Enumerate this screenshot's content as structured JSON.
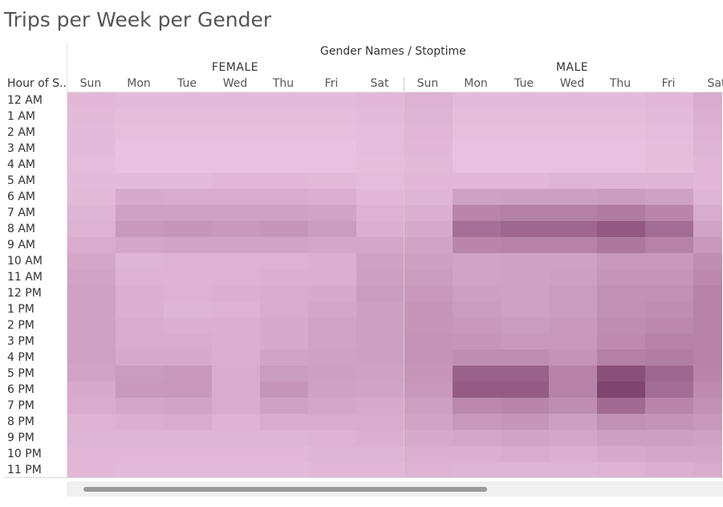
{
  "title": "Trips per Week per Gender",
  "chart_data": {
    "type": "heatmap",
    "column_super_header": "Gender Names / Stoptime",
    "row_header": "Hour of S..",
    "groups": [
      "FEMALE",
      "MALE"
    ],
    "days": [
      "Sun",
      "Mon",
      "Tue",
      "Wed",
      "Thu",
      "Fri",
      "Sat"
    ],
    "hours": [
      "12 AM",
      "1 AM",
      "2 AM",
      "3 AM",
      "4 AM",
      "5 AM",
      "6 AM",
      "7 AM",
      "8 AM",
      "9 AM",
      "10 AM",
      "11 AM",
      "12 PM",
      "1 PM",
      "2 PM",
      "3 PM",
      "4 PM",
      "5 PM",
      "6 PM",
      "7 PM",
      "8 PM",
      "9 PM",
      "10 PM",
      "11 PM"
    ],
    "color_low": "#f0c8e6",
    "color_high": "#7a3e6a",
    "values": {
      "FEMALE": [
        [
          12,
          10,
          10,
          10,
          10,
          10,
          12
        ],
        [
          11,
          8,
          8,
          8,
          8,
          8,
          10
        ],
        [
          10,
          7,
          7,
          7,
          7,
          7,
          9
        ],
        [
          10,
          6,
          6,
          6,
          6,
          6,
          9
        ],
        [
          9,
          6,
          6,
          6,
          6,
          6,
          8
        ],
        [
          10,
          10,
          10,
          12,
          12,
          11,
          9
        ],
        [
          11,
          22,
          20,
          20,
          20,
          18,
          12
        ],
        [
          14,
          28,
          28,
          28,
          28,
          26,
          16
        ],
        [
          16,
          34,
          36,
          34,
          36,
          32,
          18
        ],
        [
          20,
          24,
          26,
          26,
          26,
          24,
          24
        ],
        [
          24,
          14,
          16,
          16,
          16,
          18,
          28
        ],
        [
          26,
          16,
          16,
          16,
          18,
          18,
          30
        ],
        [
          28,
          18,
          16,
          18,
          20,
          22,
          32
        ],
        [
          28,
          18,
          14,
          16,
          20,
          24,
          30
        ],
        [
          28,
          20,
          18,
          18,
          22,
          26,
          30
        ],
        [
          28,
          20,
          20,
          18,
          22,
          26,
          30
        ],
        [
          28,
          22,
          22,
          18,
          26,
          28,
          30
        ],
        [
          26,
          32,
          34,
          20,
          32,
          30,
          28
        ],
        [
          22,
          34,
          34,
          20,
          36,
          28,
          26
        ],
        [
          20,
          24,
          26,
          20,
          28,
          24,
          22
        ],
        [
          16,
          18,
          20,
          16,
          20,
          20,
          20
        ],
        [
          14,
          14,
          14,
          14,
          14,
          16,
          18
        ],
        [
          12,
          12,
          12,
          12,
          12,
          14,
          14
        ],
        [
          12,
          10,
          10,
          10,
          10,
          12,
          12
        ]
      ],
      "MALE": [
        [
          16,
          10,
          10,
          10,
          10,
          12,
          20
        ],
        [
          14,
          8,
          8,
          8,
          8,
          10,
          18
        ],
        [
          13,
          7,
          7,
          7,
          7,
          9,
          16
        ],
        [
          12,
          6,
          6,
          6,
          6,
          8,
          14
        ],
        [
          11,
          6,
          6,
          6,
          6,
          8,
          12
        ],
        [
          12,
          12,
          12,
          14,
          14,
          14,
          12
        ],
        [
          14,
          28,
          30,
          30,
          32,
          28,
          14
        ],
        [
          18,
          48,
          52,
          52,
          56,
          48,
          20
        ],
        [
          22,
          64,
          70,
          70,
          80,
          66,
          26
        ],
        [
          26,
          48,
          50,
          50,
          58,
          50,
          34
        ],
        [
          30,
          26,
          28,
          28,
          34,
          34,
          42
        ],
        [
          32,
          26,
          28,
          30,
          36,
          36,
          46
        ],
        [
          34,
          30,
          28,
          32,
          40,
          40,
          50
        ],
        [
          36,
          32,
          28,
          32,
          40,
          42,
          50
        ],
        [
          36,
          34,
          32,
          34,
          42,
          46,
          50
        ],
        [
          38,
          36,
          34,
          34,
          44,
          50,
          50
        ],
        [
          38,
          42,
          42,
          38,
          52,
          54,
          50
        ],
        [
          36,
          74,
          74,
          50,
          88,
          70,
          48
        ],
        [
          34,
          78,
          78,
          50,
          96,
          66,
          44
        ],
        [
          30,
          46,
          48,
          42,
          68,
          48,
          40
        ],
        [
          26,
          34,
          36,
          30,
          40,
          38,
          34
        ],
        [
          22,
          24,
          26,
          24,
          30,
          30,
          28
        ],
        [
          18,
          18,
          20,
          18,
          22,
          24,
          24
        ],
        [
          16,
          14,
          14,
          14,
          16,
          18,
          20
        ]
      ]
    }
  }
}
